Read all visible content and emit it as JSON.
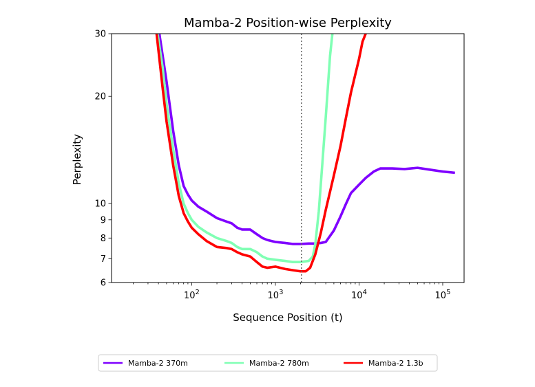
{
  "chart_data": {
    "type": "line",
    "title": "Mamba-2 Position-wise Perplexity",
    "xlabel": "Sequence Position (t)",
    "ylabel": "Perplexity",
    "xscale": "log",
    "yscale": "log",
    "xlim": [
      11,
      180000
    ],
    "ylim": [
      6,
      30
    ],
    "x_ticks": [
      {
        "value": 100,
        "base": "10",
        "exp": "2"
      },
      {
        "value": 1000,
        "base": "10",
        "exp": "3"
      },
      {
        "value": 10000,
        "base": "10",
        "exp": "4"
      },
      {
        "value": 100000,
        "base": "10",
        "exp": "5"
      }
    ],
    "y_ticks": [
      {
        "value": 6,
        "label": "6"
      },
      {
        "value": 7,
        "label": "7"
      },
      {
        "value": 8,
        "label": "8"
      },
      {
        "value": 9,
        "label": "9"
      },
      {
        "value": 10,
        "label": "10"
      },
      {
        "value": 20,
        "label": "20"
      },
      {
        "value": 30,
        "label": "30"
      }
    ],
    "reference_line": {
      "x": 2048,
      "style": "dotted",
      "color": "#666666"
    },
    "legend_position": "below",
    "series": [
      {
        "name": "Mamba-2 370m",
        "color": "#7f00ff",
        "points": [
          [
            41,
            30
          ],
          [
            50,
            22
          ],
          [
            60,
            16
          ],
          [
            70,
            12.8
          ],
          [
            80,
            11.2
          ],
          [
            90,
            10.6
          ],
          [
            100,
            10.2
          ],
          [
            120,
            9.8
          ],
          [
            150,
            9.5
          ],
          [
            200,
            9.1
          ],
          [
            260,
            8.9
          ],
          [
            300,
            8.8
          ],
          [
            350,
            8.55
          ],
          [
            400,
            8.45
          ],
          [
            500,
            8.45
          ],
          [
            600,
            8.2
          ],
          [
            700,
            8.0
          ],
          [
            800,
            7.9
          ],
          [
            1000,
            7.8
          ],
          [
            1300,
            7.75
          ],
          [
            1600,
            7.7
          ],
          [
            2000,
            7.7
          ],
          [
            2500,
            7.72
          ],
          [
            3000,
            7.72
          ],
          [
            3500,
            7.75
          ],
          [
            4000,
            7.8
          ],
          [
            5000,
            8.4
          ],
          [
            6000,
            9.2
          ],
          [
            7000,
            10.0
          ],
          [
            8000,
            10.7
          ],
          [
            10000,
            11.3
          ],
          [
            12000,
            11.8
          ],
          [
            15000,
            12.3
          ],
          [
            18000,
            12.55
          ],
          [
            25000,
            12.55
          ],
          [
            35000,
            12.5
          ],
          [
            50000,
            12.6
          ],
          [
            70000,
            12.45
          ],
          [
            100000,
            12.3
          ],
          [
            140000,
            12.2
          ]
        ]
      },
      {
        "name": "Mamba-2 780m",
        "color": "#80ffb4",
        "points": [
          [
            39,
            30
          ],
          [
            45,
            24
          ],
          [
            50,
            19
          ],
          [
            60,
            14.2
          ],
          [
            70,
            11.4
          ],
          [
            80,
            10.0
          ],
          [
            90,
            9.4
          ],
          [
            100,
            9.0
          ],
          [
            120,
            8.6
          ],
          [
            150,
            8.3
          ],
          [
            200,
            8.0
          ],
          [
            260,
            7.85
          ],
          [
            300,
            7.75
          ],
          [
            350,
            7.55
          ],
          [
            400,
            7.45
          ],
          [
            500,
            7.45
          ],
          [
            600,
            7.3
          ],
          [
            700,
            7.1
          ],
          [
            800,
            7.0
          ],
          [
            1000,
            6.95
          ],
          [
            1300,
            6.9
          ],
          [
            1600,
            6.85
          ],
          [
            2000,
            6.85
          ],
          [
            2500,
            6.9
          ],
          [
            2800,
            7.1
          ],
          [
            3000,
            7.7
          ],
          [
            3300,
            9.5
          ],
          [
            3600,
            12.5
          ],
          [
            4000,
            17.5
          ],
          [
            4500,
            26
          ],
          [
            4800,
            30
          ]
        ]
      },
      {
        "name": "Mamba-2 1.3b",
        "color": "#ff0000",
        "points": [
          [
            38,
            30
          ],
          [
            45,
            21
          ],
          [
            50,
            17
          ],
          [
            60,
            12.8
          ],
          [
            70,
            10.5
          ],
          [
            80,
            9.4
          ],
          [
            90,
            8.9
          ],
          [
            100,
            8.55
          ],
          [
            120,
            8.2
          ],
          [
            150,
            7.85
          ],
          [
            200,
            7.55
          ],
          [
            260,
            7.5
          ],
          [
            300,
            7.45
          ],
          [
            350,
            7.3
          ],
          [
            400,
            7.2
          ],
          [
            500,
            7.1
          ],
          [
            600,
            6.85
          ],
          [
            700,
            6.65
          ],
          [
            800,
            6.6
          ],
          [
            1000,
            6.65
          ],
          [
            1300,
            6.55
          ],
          [
            1600,
            6.5
          ],
          [
            2000,
            6.45
          ],
          [
            2300,
            6.45
          ],
          [
            2600,
            6.6
          ],
          [
            3000,
            7.2
          ],
          [
            3500,
            8.3
          ],
          [
            4000,
            9.6
          ],
          [
            5000,
            12.0
          ],
          [
            6000,
            14.5
          ],
          [
            7000,
            17.5
          ],
          [
            8000,
            20.5
          ],
          [
            9000,
            23.0
          ],
          [
            10000,
            25.5
          ],
          [
            11000,
            28.5
          ],
          [
            12000,
            30
          ]
        ]
      }
    ]
  }
}
